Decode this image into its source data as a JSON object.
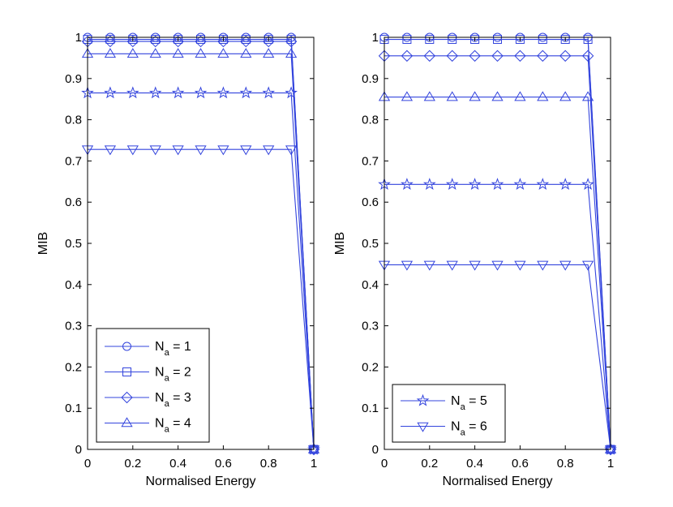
{
  "chart_data": [
    {
      "type": "line",
      "xlabel": "Normalised Energy",
      "ylabel": "MIB",
      "xlim": [
        0,
        1
      ],
      "ylim": [
        0,
        1
      ],
      "xticks": [
        "0",
        "0.2",
        "0.4",
        "0.6",
        "0.8",
        "1"
      ],
      "yticks": [
        "0",
        "0.1",
        "0.2",
        "0.3",
        "0.4",
        "0.5",
        "0.6",
        "0.7",
        "0.8",
        "0.9",
        "1"
      ],
      "grid": false,
      "legend_position": "bottom-left",
      "x": [
        0,
        0.1,
        0.2,
        0.3,
        0.4,
        0.5,
        0.6,
        0.7,
        0.8,
        0.9,
        1.0
      ],
      "series": [
        {
          "legend_base": "N",
          "legend_sub": "a",
          "legend_value": " = 1",
          "marker": "circle",
          "values": [
            1.0,
            1.0,
            1.0,
            1.0,
            1.0,
            1.0,
            1.0,
            1.0,
            1.0,
            1.0,
            0
          ]
        },
        {
          "legend_base": "N",
          "legend_sub": "a",
          "legend_value": " = 2",
          "marker": "square",
          "values": [
            0.995,
            0.995,
            0.995,
            0.995,
            0.995,
            0.995,
            0.995,
            0.995,
            0.995,
            0.995,
            0
          ]
        },
        {
          "legend_base": "N",
          "legend_sub": "a",
          "legend_value": " = 3",
          "marker": "diamond",
          "values": [
            0.99,
            0.99,
            0.99,
            0.99,
            0.99,
            0.99,
            0.99,
            0.99,
            0.99,
            0.99,
            0
          ]
        },
        {
          "legend_base": "N",
          "legend_sub": "a",
          "legend_value": " = 4",
          "marker": "triangle-up",
          "values": [
            0.96,
            0.96,
            0.96,
            0.96,
            0.96,
            0.96,
            0.96,
            0.96,
            0.96,
            0.96,
            0
          ]
        },
        {
          "marker": "star",
          "values": [
            0.865,
            0.865,
            0.865,
            0.865,
            0.865,
            0.865,
            0.865,
            0.865,
            0.865,
            0.865,
            0
          ]
        },
        {
          "marker": "triangle-down",
          "values": [
            0.728,
            0.728,
            0.728,
            0.728,
            0.728,
            0.728,
            0.728,
            0.728,
            0.728,
            0.728,
            0
          ]
        }
      ]
    },
    {
      "type": "line",
      "xlabel": "Normalised Energy",
      "ylabel": "MIB",
      "xlim": [
        0,
        1
      ],
      "ylim": [
        0,
        1
      ],
      "xticks": [
        "0",
        "0.2",
        "0.4",
        "0.6",
        "0.8",
        "1"
      ],
      "yticks": [
        "0",
        "0.1",
        "0.2",
        "0.3",
        "0.4",
        "0.5",
        "0.6",
        "0.7",
        "0.8",
        "0.9",
        "1"
      ],
      "grid": false,
      "legend_position": "bottom-left",
      "x": [
        0,
        0.1,
        0.2,
        0.3,
        0.4,
        0.5,
        0.6,
        0.7,
        0.8,
        0.9,
        1.0
      ],
      "series": [
        {
          "marker": "circle",
          "values": [
            1.0,
            1.0,
            1.0,
            1.0,
            1.0,
            1.0,
            1.0,
            1.0,
            1.0,
            1.0,
            0
          ]
        },
        {
          "marker": "square",
          "values": [
            0.995,
            0.995,
            0.995,
            0.995,
            0.995,
            0.995,
            0.995,
            0.995,
            0.995,
            0.995,
            0
          ]
        },
        {
          "marker": "diamond",
          "values": [
            0.955,
            0.955,
            0.955,
            0.955,
            0.955,
            0.955,
            0.955,
            0.955,
            0.955,
            0.955,
            0
          ]
        },
        {
          "marker": "triangle-up",
          "values": [
            0.855,
            0.855,
            0.855,
            0.855,
            0.855,
            0.855,
            0.855,
            0.855,
            0.855,
            0.855,
            0
          ]
        },
        {
          "legend_base": "N",
          "legend_sub": "a",
          "legend_value": " = 5",
          "marker": "star",
          "values": [
            0.643,
            0.643,
            0.643,
            0.643,
            0.643,
            0.643,
            0.643,
            0.643,
            0.643,
            0.643,
            0
          ]
        },
        {
          "legend_base": "N",
          "legend_sub": "a",
          "legend_value": " = 6",
          "marker": "triangle-down",
          "values": [
            0.448,
            0.448,
            0.448,
            0.448,
            0.448,
            0.448,
            0.448,
            0.448,
            0.448,
            0.448,
            0
          ]
        }
      ]
    }
  ],
  "colors": {
    "series": "#3344dd",
    "axes": "#000000",
    "background": "#ffffff"
  }
}
